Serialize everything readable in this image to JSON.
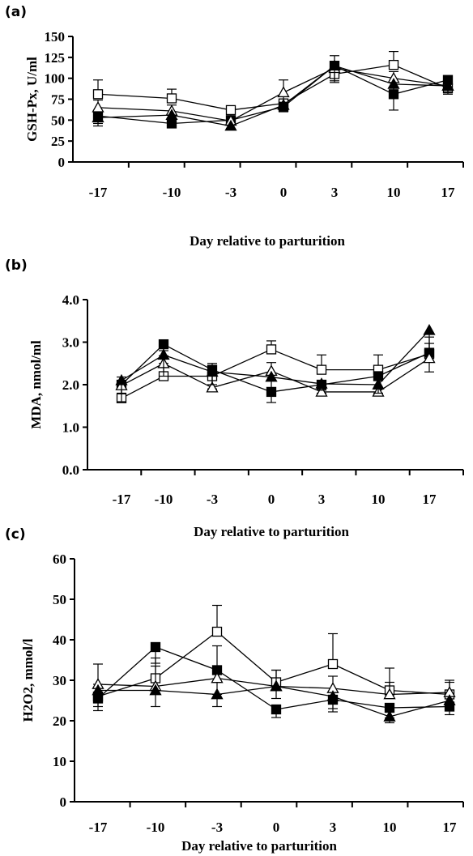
{
  "chart_data": [
    {
      "type": "line",
      "panel_label": "(a)",
      "ylabel": "GSH-Px, U/ml",
      "xlabel": "Day relative to parturition",
      "categories": [
        "-17",
        "-10",
        "-3",
        "0",
        "3",
        "10",
        "17"
      ],
      "ylim": [
        0,
        150
      ],
      "yticks": [
        "0",
        "25",
        "50",
        "75",
        "100",
        "125",
        "150"
      ],
      "series": [
        {
          "marker": "open-square",
          "values": [
            81,
            76,
            62,
            70,
            105,
            116,
            88
          ],
          "errors": [
            17,
            11,
            4,
            9,
            14,
            16,
            12
          ]
        },
        {
          "marker": "filled-square",
          "values": [
            55,
            46,
            50,
            66,
            115,
            81,
            98
          ],
          "errors": [
            9,
            4,
            4,
            6,
            20,
            19,
            14
          ]
        },
        {
          "marker": "open-triangle",
          "values": [
            65,
            61,
            49,
            83,
            112,
            100,
            91
          ],
          "errors": [
            9,
            7,
            4,
            15,
            15,
            8,
            12
          ]
        },
        {
          "marker": "filled-triangle",
          "values": [
            53,
            56,
            43,
            68,
            115,
            93,
            91
          ],
          "errors": [
            10,
            8,
            3,
            7,
            18,
            9,
            10
          ]
        }
      ]
    },
    {
      "type": "line",
      "panel_label": "(b)",
      "ylabel": "MDA, nmol/ml",
      "xlabel": "Day relative to parturition",
      "categories": [
        "-17",
        "-10",
        "-3",
        "0",
        "3",
        "10",
        "17"
      ],
      "ylim": [
        0,
        4
      ],
      "yticks": [
        "0.0",
        "1.0",
        "2.0",
        "3.0",
        "4.0"
      ],
      "series": [
        {
          "marker": "open-square",
          "values": [
            1.68,
            2.2,
            2.2,
            2.83,
            2.35,
            2.35,
            2.72
          ],
          "errors": [
            0.25,
            0.3,
            0.3,
            0.2,
            0.35,
            0.35,
            0.4
          ]
        },
        {
          "marker": "filled-square",
          "values": [
            2.0,
            2.95,
            2.35,
            1.83,
            2.0,
            2.2,
            2.75
          ],
          "errors": [
            0.4,
            0.27,
            0.45,
            0.25,
            0.2,
            0.3,
            0.45
          ]
        },
        {
          "marker": "open-triangle",
          "values": [
            1.98,
            2.5,
            1.93,
            2.32,
            1.83,
            1.83,
            2.62
          ],
          "errors": [
            0.2,
            0.3,
            0.3,
            0.2,
            0.1,
            0.1,
            0.35
          ]
        },
        {
          "marker": "filled-triangle",
          "values": [
            2.1,
            2.7,
            2.3,
            2.18,
            2.02,
            2.0,
            3.28
          ],
          "errors": [
            0.3,
            0.5,
            0.3,
            0.3,
            0.15,
            0.2,
            0.45
          ]
        }
      ]
    },
    {
      "type": "line",
      "panel_label": "(c)",
      "ylabel": "H2O2, mmol/l",
      "xlabel": "Day relative to parturition",
      "categories": [
        "-17",
        "-10",
        "-3",
        "0",
        "3",
        "10",
        "17"
      ],
      "ylim": [
        0,
        60
      ],
      "yticks": [
        "0",
        "10",
        "20",
        "30",
        "40",
        "50",
        "60"
      ],
      "series": [
        {
          "marker": "open-square",
          "values": [
            26,
            30.5,
            42,
            29.5,
            34,
            27.5,
            26.5
          ],
          "errors": [
            3,
            5,
            6.5,
            3,
            7.5,
            5.5,
            3
          ]
        },
        {
          "marker": "filled-square",
          "values": [
            25.5,
            38.2,
            32.5,
            22.8,
            25.2,
            23.2,
            23.5
          ],
          "errors": [
            3,
            4,
            6,
            2,
            3,
            2.5,
            2
          ]
        },
        {
          "marker": "open-triangle",
          "values": [
            29,
            28.5,
            30.5,
            28.5,
            28,
            26.5,
            27
          ],
          "errors": [
            5,
            5,
            8,
            4,
            3,
            3,
            3
          ]
        },
        {
          "marker": "filled-triangle",
          "values": [
            27.5,
            27.5,
            26.5,
            28.5,
            26,
            21,
            25
          ],
          "errors": [
            4,
            4,
            3,
            3,
            3,
            1.5,
            2
          ]
        }
      ]
    }
  ]
}
